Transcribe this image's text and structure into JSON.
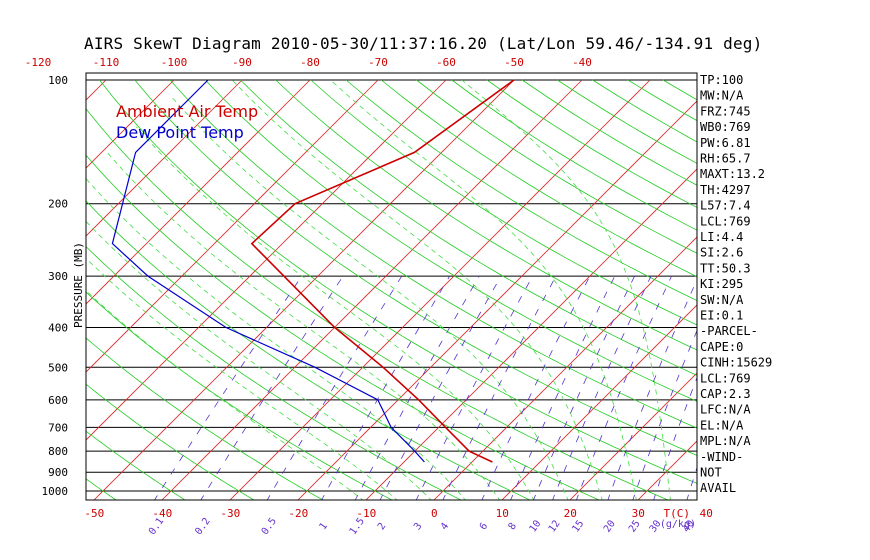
{
  "title": "AIRS SkewT Diagram 2010-05-30/11:37:16.20 (Lat/Lon 59.46/-134.91 deg)",
  "colors": {
    "temp": "#cc0000",
    "dew": "#0000cc",
    "isotherm": "#dd2222",
    "dry_adiabat": "#22cc22",
    "moist_adiabat": "#44dd44",
    "mixing": "#5533cc",
    "isobar": "#000000"
  },
  "chart_data": {
    "type": "line",
    "title": "AIRS SkewT Diagram 2010-05-30/11:37:16.20 (Lat/Lon 59.46/-134.91 deg)",
    "ylabel": "PRESSURE (MB)",
    "xlabel": "T(C)",
    "mixing_ratio_unit": "(g/kg)",
    "y_scale": "log",
    "ylim": [
      1050,
      100
    ],
    "pressure_ticks": [
      "100",
      "200",
      "300",
      "400",
      "500",
      "600",
      "700",
      "800",
      "900",
      "1000"
    ],
    "top_temp_ticks": [
      "-120",
      "-110",
      "-100",
      "-90",
      "-80",
      "-70",
      "-60",
      "-50",
      "-40"
    ],
    "bottom_temp_ticks": [
      "-50",
      "-40",
      "-30",
      "-20",
      "-10",
      "0",
      "10",
      "20",
      "30",
      "40"
    ],
    "mixing_ratio_ticks": [
      "0.1",
      "0.2",
      "0.5",
      "1",
      "1.5",
      "2",
      "3",
      "4",
      "6",
      "8",
      "10",
      "12",
      "15",
      "20",
      "25",
      "30",
      "40"
    ],
    "series": [
      {
        "name": "Ambient Air Temp",
        "color": "#cc0000",
        "points": [
          {
            "p": 100,
            "t": -50.0
          },
          {
            "p": 150,
            "t": -54.0
          },
          {
            "p": 200,
            "t": -64.0
          },
          {
            "p": 250,
            "t": -64.5
          },
          {
            "p": 300,
            "t": -55.0
          },
          {
            "p": 400,
            "t": -40.0
          },
          {
            "p": 500,
            "t": -27.0
          },
          {
            "p": 600,
            "t": -17.0
          },
          {
            "p": 700,
            "t": -9.0
          },
          {
            "p": 800,
            "t": -2.0
          },
          {
            "p": 850,
            "t": 3.0
          }
        ]
      },
      {
        "name": "Dew Point Temp",
        "color": "#0000cc",
        "points": [
          {
            "p": 100,
            "t": -95.0
          },
          {
            "p": 150,
            "t": -95.0
          },
          {
            "p": 250,
            "t": -85.0
          },
          {
            "p": 300,
            "t": -75.0
          },
          {
            "p": 400,
            "t": -56.0
          },
          {
            "p": 500,
            "t": -37.0
          },
          {
            "p": 600,
            "t": -23.0
          },
          {
            "p": 700,
            "t": -17.0
          },
          {
            "p": 800,
            "t": -10.0
          },
          {
            "p": 850,
            "t": -7.0
          }
        ]
      }
    ],
    "indices": [
      "TP:100",
      "MW:N/A",
      "FRZ:745",
      "WB0:769",
      "PW:6.81",
      "RH:65.7",
      "MAXT:13.2",
      "TH:4297",
      "L57:7.4",
      "LCL:769",
      "LI:4.4",
      "SI:2.6",
      "TT:50.3",
      "KI:295",
      "SW:N/A",
      "EI:0.1",
      "-PARCEL-",
      "CAPE:0",
      "CINH:15629",
      "LCL:769",
      "CAP:2.3",
      "LFC:N/A",
      "EL:N/A",
      "MPL:N/A",
      "-WIND-",
      "NOT",
      "AVAIL"
    ]
  }
}
